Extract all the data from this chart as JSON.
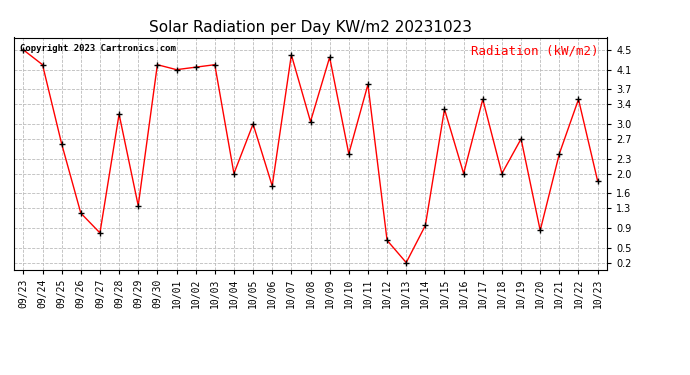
{
  "title": "Solar Radiation per Day KW/m2 20231023",
  "legend_label": "Radiation (kW/m2)",
  "copyright": "Copyright 2023 Cartronics.com",
  "dates": [
    "09/23",
    "09/24",
    "09/25",
    "09/26",
    "09/27",
    "09/28",
    "09/29",
    "09/30",
    "10/01",
    "10/02",
    "10/03",
    "10/04",
    "10/05",
    "10/06",
    "10/07",
    "10/08",
    "10/09",
    "10/10",
    "10/11",
    "10/12",
    "10/13",
    "10/14",
    "10/15",
    "10/16",
    "10/17",
    "10/18",
    "10/19",
    "10/20",
    "10/21",
    "10/22",
    "10/23"
  ],
  "values": [
    4.5,
    4.2,
    2.6,
    1.2,
    0.8,
    3.2,
    1.35,
    4.2,
    4.1,
    4.15,
    4.2,
    2.0,
    3.0,
    1.75,
    4.4,
    3.05,
    4.35,
    2.4,
    3.8,
    0.65,
    0.2,
    0.95,
    3.3,
    2.0,
    3.5,
    2.0,
    2.7,
    0.85,
    2.4,
    3.5,
    1.85
  ],
  "line_color": "red",
  "marker_color": "black",
  "marker_style": "+",
  "marker_size": 5,
  "grid_color": "#bbbbbb",
  "grid_style": "--",
  "background_color": "white",
  "title_fontsize": 11,
  "legend_color": "red",
  "legend_fontsize": 9,
  "copyright_color": "black",
  "copyright_fontsize": 6.5,
  "tick_fontsize": 7,
  "ytick_values": [
    0.2,
    0.5,
    0.9,
    1.3,
    1.6,
    2.0,
    2.3,
    2.7,
    3.0,
    3.4,
    3.7,
    4.1,
    4.5
  ],
  "ylim": [
    0.05,
    4.75
  ],
  "figsize": [
    6.9,
    3.75
  ],
  "dpi": 100
}
